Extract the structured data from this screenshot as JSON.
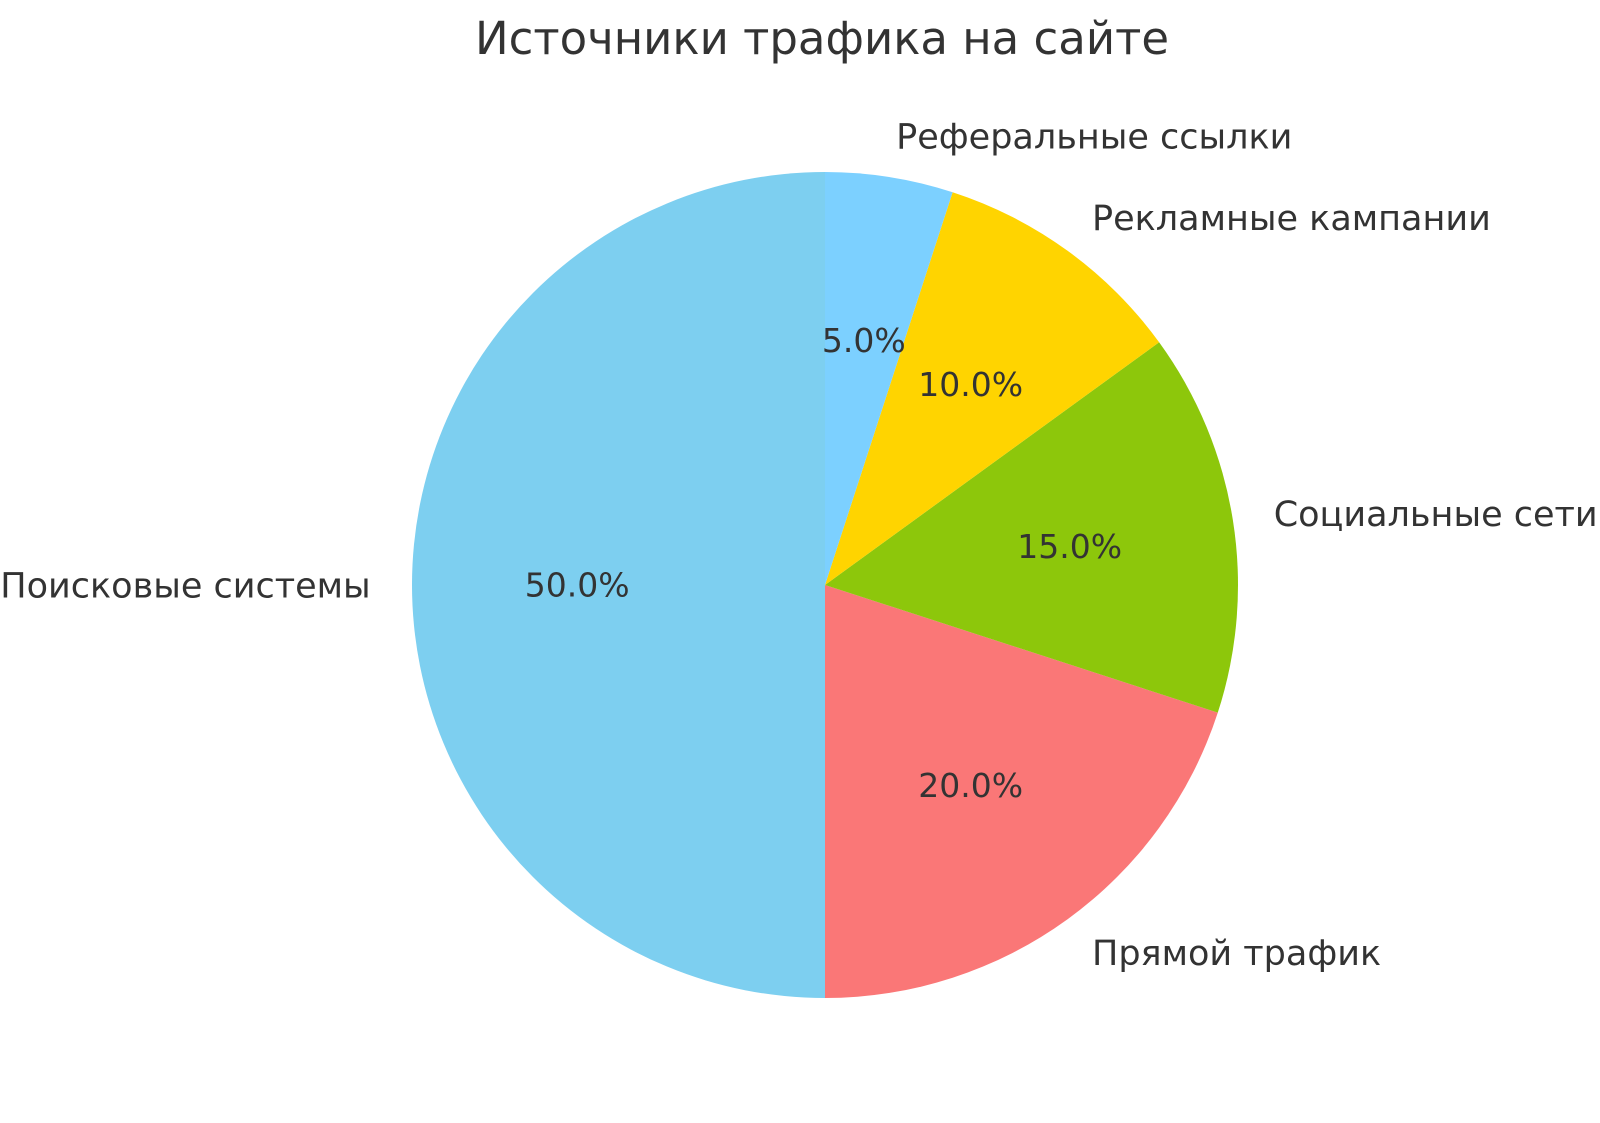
{
  "page": {
    "background_color": "#ffffff",
    "text_color": "#333333"
  },
  "chart_data": {
    "type": "pie",
    "title": "Источники трафика на сайте",
    "categories": [
      "Поисковые системы",
      "Прямой трафик",
      "Социальные сети",
      "Рекламные кампании",
      "Реферальные ссылки"
    ],
    "values": [
      50,
      20,
      15,
      10,
      5
    ],
    "pct_labels": [
      "50.0%",
      "20.0%",
      "15.0%",
      "10.0%",
      "5.0%"
    ],
    "colors": [
      "#7DCFF0",
      "#FA7777",
      "#8DC70B",
      "#FFD400",
      "#7CD0FF"
    ],
    "start_angle": 90,
    "counterclock": true,
    "label_distance": 1.1,
    "pct_distance": 0.6,
    "legend": "none",
    "axes": "none"
  }
}
